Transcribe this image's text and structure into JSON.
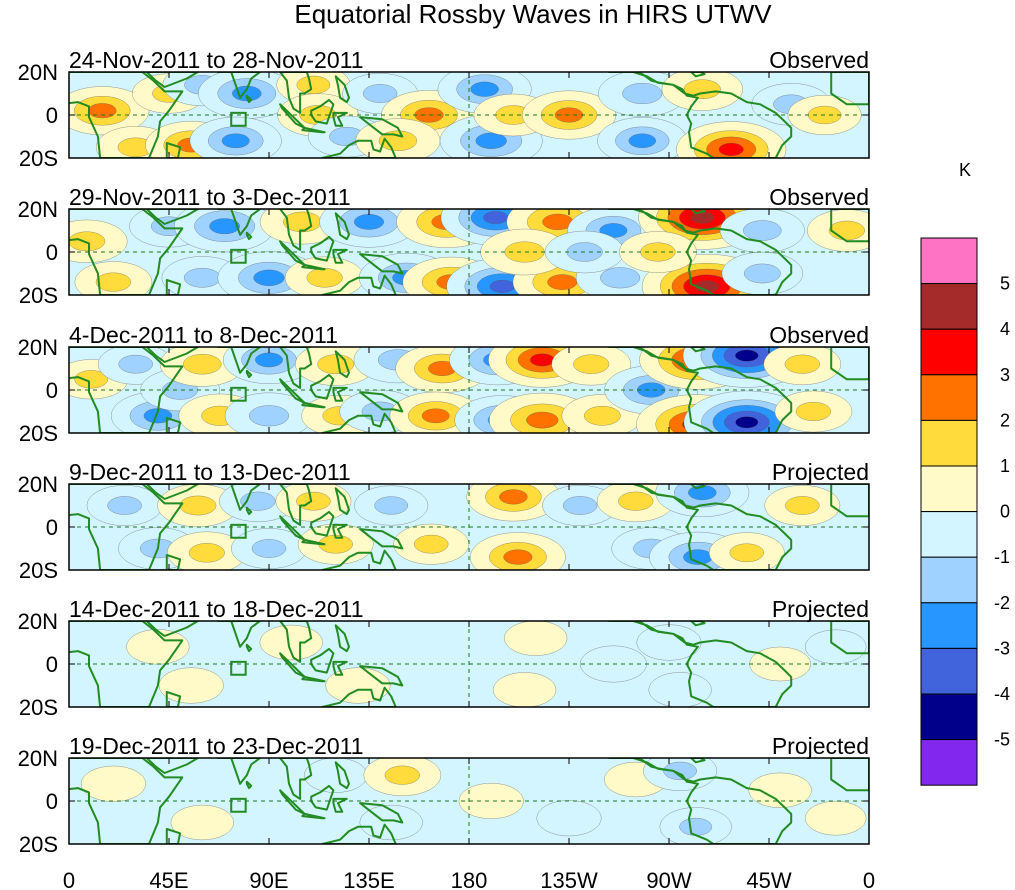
{
  "chart_data": {
    "type": "heatmap",
    "title": "Equatorial Rossby Waves in HIRS UTWV",
    "units": "K",
    "x_ticks": [
      "0",
      "45E",
      "90E",
      "135E",
      "180",
      "135W",
      "90W",
      "45W",
      "0"
    ],
    "y_ticks": [
      "20N",
      "0",
      "20S"
    ],
    "xlim": [
      0,
      360
    ],
    "ylim": [
      -20,
      20
    ],
    "colorbar_levels": [
      "5",
      "4",
      "3",
      "2",
      "1",
      "0",
      "-1",
      "-2",
      "-3",
      "-4",
      "-5"
    ],
    "colorbar_colors": [
      "#ff73c5",
      "#a52a2a",
      "#ff0000",
      "#ff7200",
      "#ffdc3c",
      "#fffac8",
      "#d2f5ff",
      "#a0d2ff",
      "#2896ff",
      "#4164dc",
      "#00008b",
      "#8228ee"
    ],
    "panels": [
      {
        "period": "24-Nov-2011 to 28-Nov-2011",
        "label": "Observed",
        "anomalies": [
          {
            "lon": 15,
            "lat": 2,
            "value": 2.3
          },
          {
            "lon": 30,
            "lat": -15,
            "value": 1.5
          },
          {
            "lon": 45,
            "lat": 10,
            "value": 1.2
          },
          {
            "lon": 60,
            "lat": 14,
            "value": -1.5
          },
          {
            "lon": 55,
            "lat": -14,
            "value": 2.2
          },
          {
            "lon": 80,
            "lat": 10,
            "value": -2.5
          },
          {
            "lon": 75,
            "lat": -12,
            "value": -2.2
          },
          {
            "lon": 110,
            "lat": 14,
            "value": 1.2
          },
          {
            "lon": 112,
            "lat": 0,
            "value": 1.6
          },
          {
            "lon": 125,
            "lat": -10,
            "value": -1.4
          },
          {
            "lon": 140,
            "lat": 10,
            "value": -1.3
          },
          {
            "lon": 162,
            "lat": 0,
            "value": 2.4
          },
          {
            "lon": 148,
            "lat": -12,
            "value": 1.8
          },
          {
            "lon": 187,
            "lat": 12,
            "value": -2.3
          },
          {
            "lon": 190,
            "lat": -12,
            "value": -2.8
          },
          {
            "lon": 200,
            "lat": 0,
            "value": 1.5
          },
          {
            "lon": 225,
            "lat": 0,
            "value": 2.3
          },
          {
            "lon": 258,
            "lat": 10,
            "value": -2.0
          },
          {
            "lon": 258,
            "lat": -12,
            "value": -2.1
          },
          {
            "lon": 285,
            "lat": 12,
            "value": 1.6
          },
          {
            "lon": 298,
            "lat": -16,
            "value": 3.2
          },
          {
            "lon": 325,
            "lat": 5,
            "value": -1.5
          },
          {
            "lon": 340,
            "lat": 0,
            "value": 1.2
          }
        ]
      },
      {
        "period": "29-Nov-2011 to 3-Dec-2011",
        "label": "Observed",
        "anomalies": [
          {
            "lon": 8,
            "lat": 5,
            "value": 1.6
          },
          {
            "lon": 20,
            "lat": -14,
            "value": 1.4
          },
          {
            "lon": 45,
            "lat": 12,
            "value": -1.5
          },
          {
            "lon": 60,
            "lat": -12,
            "value": -1.6
          },
          {
            "lon": 70,
            "lat": 12,
            "value": -2.7
          },
          {
            "lon": 90,
            "lat": -12,
            "value": -2.8
          },
          {
            "lon": 105,
            "lat": 14,
            "value": 1.8
          },
          {
            "lon": 115,
            "lat": -12,
            "value": 1.5
          },
          {
            "lon": 135,
            "lat": 14,
            "value": -2.6
          },
          {
            "lon": 152,
            "lat": -12,
            "value": -2.4
          },
          {
            "lon": 170,
            "lat": 14,
            "value": 2.7
          },
          {
            "lon": 172,
            "lat": -14,
            "value": 2.5
          },
          {
            "lon": 192,
            "lat": 16,
            "value": -3.2
          },
          {
            "lon": 195,
            "lat": -16,
            "value": -3.3
          },
          {
            "lon": 220,
            "lat": 14,
            "value": 2.8
          },
          {
            "lon": 222,
            "lat": -14,
            "value": 2.6
          },
          {
            "lon": 205,
            "lat": 0,
            "value": 2.0
          },
          {
            "lon": 245,
            "lat": 10,
            "value": -2.2
          },
          {
            "lon": 248,
            "lat": -12,
            "value": -2.0
          },
          {
            "lon": 232,
            "lat": 0,
            "value": -1.5
          },
          {
            "lon": 285,
            "lat": 16,
            "value": 4.2
          },
          {
            "lon": 287,
            "lat": -16,
            "value": 4.3
          },
          {
            "lon": 312,
            "lat": 10,
            "value": -1.8
          },
          {
            "lon": 312,
            "lat": -10,
            "value": -1.6
          },
          {
            "lon": 265,
            "lat": 0,
            "value": 1.4
          },
          {
            "lon": 350,
            "lat": 10,
            "value": 1.5
          }
        ]
      },
      {
        "period": "4-Dec-2011 to 8-Dec-2011",
        "label": "Observed",
        "anomalies": [
          {
            "lon": 10,
            "lat": 5,
            "value": 1.2
          },
          {
            "lon": 30,
            "lat": 12,
            "value": -1.3
          },
          {
            "lon": 40,
            "lat": -12,
            "value": -2.3
          },
          {
            "lon": 50,
            "lat": 0,
            "value": -1.5
          },
          {
            "lon": 60,
            "lat": 12,
            "value": 1.8
          },
          {
            "lon": 68,
            "lat": -12,
            "value": 1.7
          },
          {
            "lon": 90,
            "lat": 14,
            "value": -2.2
          },
          {
            "lon": 90,
            "lat": -12,
            "value": -2.0
          },
          {
            "lon": 120,
            "lat": 12,
            "value": 1.6
          },
          {
            "lon": 122,
            "lat": -12,
            "value": 1.4
          },
          {
            "lon": 148,
            "lat": 14,
            "value": -2.0
          },
          {
            "lon": 140,
            "lat": -10,
            "value": -1.6
          },
          {
            "lon": 168,
            "lat": 10,
            "value": 2.3
          },
          {
            "lon": 165,
            "lat": -12,
            "value": 2.2
          },
          {
            "lon": 193,
            "lat": 14,
            "value": -2.5
          },
          {
            "lon": 195,
            "lat": -14,
            "value": -2.4
          },
          {
            "lon": 213,
            "lat": 14,
            "value": 3.1
          },
          {
            "lon": 213,
            "lat": -14,
            "value": 3.0
          },
          {
            "lon": 235,
            "lat": 12,
            "value": 1.5
          },
          {
            "lon": 240,
            "lat": -12,
            "value": 1.6
          },
          {
            "lon": 262,
            "lat": 0,
            "value": -2.3
          },
          {
            "lon": 283,
            "lat": 14,
            "value": 3.6
          },
          {
            "lon": 282,
            "lat": -16,
            "value": 3.7
          },
          {
            "lon": 305,
            "lat": 16,
            "value": -4.2
          },
          {
            "lon": 305,
            "lat": -15,
            "value": -4.1
          },
          {
            "lon": 330,
            "lat": 12,
            "value": 1.4
          },
          {
            "lon": 335,
            "lat": -10,
            "value": 1.4
          }
        ]
      },
      {
        "period": "9-Dec-2011 to 13-Dec-2011",
        "label": "Projected",
        "anomalies": [
          {
            "lon": 25,
            "lat": 10,
            "value": -1.3
          },
          {
            "lon": 40,
            "lat": -10,
            "value": -1.5
          },
          {
            "lon": 58,
            "lat": 10,
            "value": 1.6
          },
          {
            "lon": 62,
            "lat": -12,
            "value": 1.5
          },
          {
            "lon": 85,
            "lat": 12,
            "value": -1.4
          },
          {
            "lon": 90,
            "lat": -10,
            "value": -1.3
          },
          {
            "lon": 110,
            "lat": 12,
            "value": 1.3
          },
          {
            "lon": 120,
            "lat": -8,
            "value": 1.3
          },
          {
            "lon": 145,
            "lat": 10,
            "value": -1.2
          },
          {
            "lon": 163,
            "lat": -8,
            "value": 1.3
          },
          {
            "lon": 200,
            "lat": 14,
            "value": 2.3
          },
          {
            "lon": 202,
            "lat": -14,
            "value": 2.4
          },
          {
            "lon": 230,
            "lat": 10,
            "value": -1.3
          },
          {
            "lon": 255,
            "lat": 12,
            "value": 1.4
          },
          {
            "lon": 262,
            "lat": -10,
            "value": -1.5
          },
          {
            "lon": 285,
            "lat": 16,
            "value": -2.3
          },
          {
            "lon": 283,
            "lat": -14,
            "value": -2.5
          },
          {
            "lon": 305,
            "lat": -12,
            "value": 1.3
          },
          {
            "lon": 330,
            "lat": 10,
            "value": 1.3
          }
        ]
      },
      {
        "period": "14-Dec-2011 to 18-Dec-2011",
        "label": "Projected",
        "anomalies": [
          {
            "lon": 40,
            "lat": 8,
            "value": 0.6
          },
          {
            "lon": 55,
            "lat": -10,
            "value": 0.7
          },
          {
            "lon": 100,
            "lat": 10,
            "value": 0.6
          },
          {
            "lon": 130,
            "lat": -10,
            "value": 0.7
          },
          {
            "lon": 210,
            "lat": 12,
            "value": 0.6
          },
          {
            "lon": 205,
            "lat": -12,
            "value": 0.6
          },
          {
            "lon": 245,
            "lat": 0,
            "value": -0.8
          },
          {
            "lon": 270,
            "lat": 10,
            "value": -0.7
          },
          {
            "lon": 275,
            "lat": -12,
            "value": -0.6
          },
          {
            "lon": 320,
            "lat": 0,
            "value": 0.5
          },
          {
            "lon": 345,
            "lat": 8,
            "value": -0.5
          }
        ]
      },
      {
        "period": "19-Dec-2011 to 23-Dec-2011",
        "label": "Projected",
        "anomalies": [
          {
            "lon": 20,
            "lat": 8,
            "value": 0.7
          },
          {
            "lon": 60,
            "lat": -10,
            "value": 0.6
          },
          {
            "lon": 120,
            "lat": 12,
            "value": -0.6
          },
          {
            "lon": 150,
            "lat": 12,
            "value": 1.4
          },
          {
            "lon": 145,
            "lat": -10,
            "value": -0.6
          },
          {
            "lon": 190,
            "lat": 0,
            "value": 0.7
          },
          {
            "lon": 225,
            "lat": -8,
            "value": -0.7
          },
          {
            "lon": 255,
            "lat": 10,
            "value": 0.6
          },
          {
            "lon": 275,
            "lat": 14,
            "value": -1.2
          },
          {
            "lon": 282,
            "lat": -12,
            "value": -1.1
          },
          {
            "lon": 320,
            "lat": 5,
            "value": 0.6
          },
          {
            "lon": 345,
            "lat": -8,
            "value": 0.5
          }
        ]
      }
    ]
  }
}
